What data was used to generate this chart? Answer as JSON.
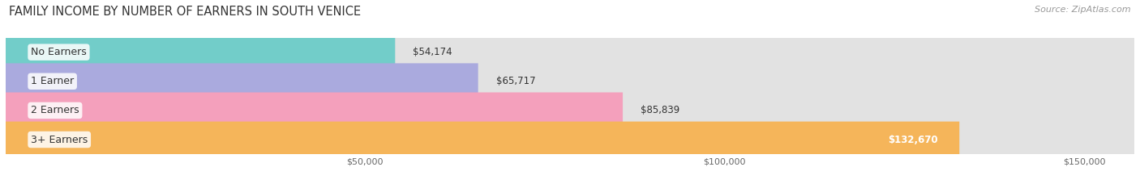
{
  "title": "FAMILY INCOME BY NUMBER OF EARNERS IN SOUTH VENICE",
  "source": "Source: ZipAtlas.com",
  "categories": [
    "No Earners",
    "1 Earner",
    "2 Earners",
    "3+ Earners"
  ],
  "values": [
    54174,
    65717,
    85839,
    132670
  ],
  "bar_colors": [
    "#72cdc9",
    "#aaaade",
    "#f4a0bc",
    "#f5b55a"
  ],
  "label_colors": [
    "#444444",
    "#444444",
    "#444444",
    "#ffffff"
  ],
  "value_labels": [
    "$54,174",
    "$65,717",
    "$85,839",
    "$132,670"
  ],
  "x_ticks": [
    50000,
    100000,
    150000
  ],
  "x_tick_labels": [
    "$50,000",
    "$100,000",
    "$150,000"
  ],
  "x_min": 0,
  "x_max": 157000,
  "bar_height": 0.62,
  "row_bg_colors": [
    "#f5f5f5",
    "#ebebeb",
    "#f5f5f5",
    "#ebebeb"
  ],
  "pill_bg_color": "#e2e2e2",
  "title_fontsize": 10.5,
  "source_fontsize": 8,
  "label_fontsize": 9,
  "value_fontsize": 8.5,
  "tick_fontsize": 8
}
